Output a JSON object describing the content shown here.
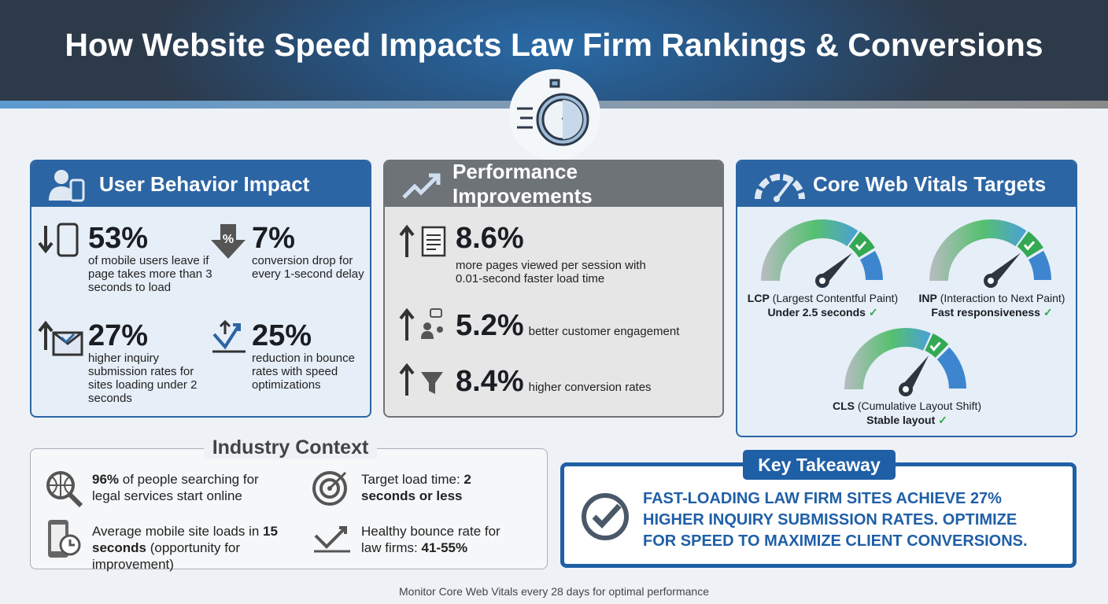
{
  "title": "How Website Speed Impacts Law Firm Rankings & Conversions",
  "icons": {
    "header": "stopwatch-icon"
  },
  "colors": {
    "blue": "#2c65a4",
    "gray_header": "#6e7378",
    "green": "#2eaa48",
    "dark": "#2d3a4a"
  },
  "user_behavior": {
    "title": "User Behavior Impact",
    "stats": [
      {
        "value": "53%",
        "text": "of mobile users leave if page takes more than 3 seconds to load",
        "icon": "mobile-down-arrow-icon"
      },
      {
        "value": "7%",
        "text": "conversion drop for every 1-second delay",
        "icon": "percent-down-arrow-icon"
      },
      {
        "value": "27%",
        "text": "higher inquiry submission rates for sites loading under 2 seconds",
        "icon": "envelope-up-arrow-icon"
      },
      {
        "value": "25%",
        "text": "reduction in bounce rates with speed optimizations",
        "icon": "bounce-arrow-icon"
      }
    ]
  },
  "performance": {
    "title": "Performance Improvements",
    "stats": [
      {
        "value": "8.6%",
        "text": "more pages viewed per session with 0.01-second faster load time",
        "icon": "pages-up-icon"
      },
      {
        "value": "5.2%",
        "text": "better customer engagement",
        "icon": "engagement-up-icon"
      },
      {
        "value": "8.4%",
        "text": "higher conversion rates",
        "icon": "funnel-up-icon"
      }
    ]
  },
  "vitals": {
    "title": "Core Web Vitals Targets",
    "items": [
      {
        "abbr": "LCP",
        "name": "(Largest Contentful Paint)",
        "target": "Under 2.5 seconds"
      },
      {
        "abbr": "INP",
        "name": "(Interaction to Next Paint)",
        "target": "Fast responsiveness"
      },
      {
        "abbr": "CLS",
        "name": "(Cumulative Layout Shift)",
        "target": "Stable layout"
      }
    ],
    "check": "✓"
  },
  "industry": {
    "title": "Industry Context",
    "items": [
      {
        "bold": "96%",
        "text": " of people searching for legal services start online"
      },
      {
        "text": "Target load time: ",
        "bold": "2 seconds or less"
      },
      {
        "text": "Average mobile site loads in ",
        "bold": "15 seconds",
        "tail": " (opportunity for improvement)"
      },
      {
        "text": "Healthy bounce rate for law firms: ",
        "bold": "41-55%"
      }
    ]
  },
  "takeaway": {
    "label": "Key Takeaway",
    "text": "FAST-LOADING LAW FIRM SITES ACHIEVE 27% HIGHER INQUIRY SUBMISSION RATES. OPTIMIZE FOR SPEED TO MAXIMIZE CLIENT CONVERSIONS."
  },
  "footer": "Monitor Core Web Vitals every 28 days for optimal performance"
}
